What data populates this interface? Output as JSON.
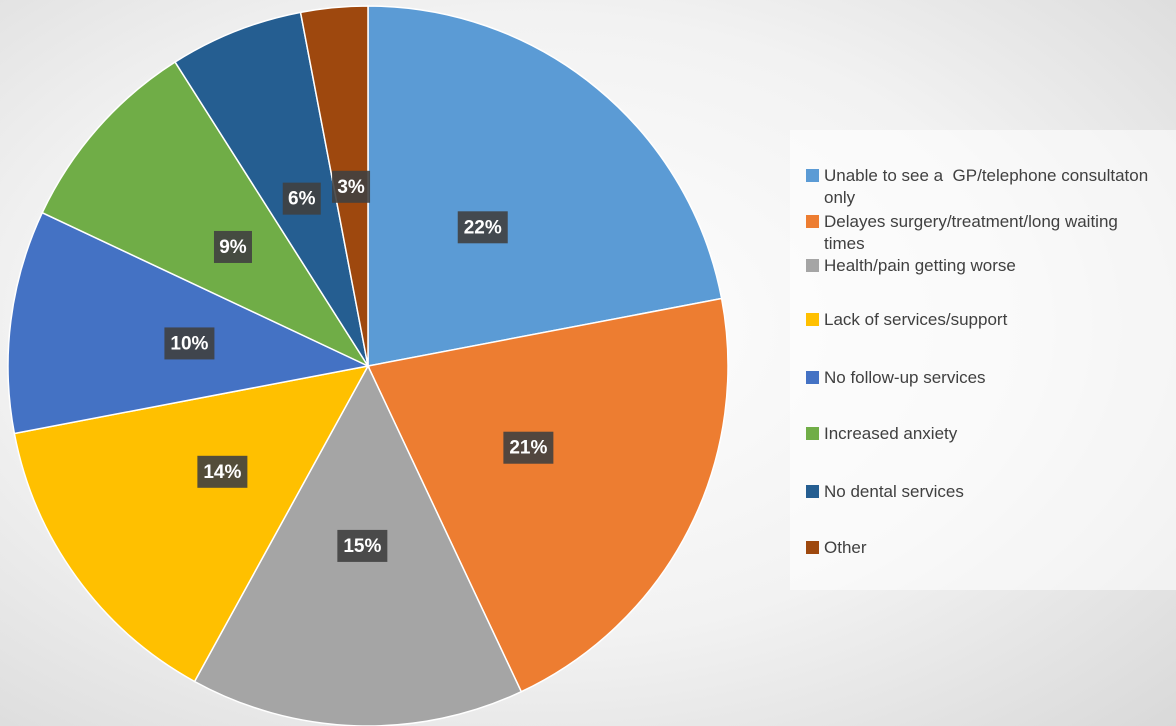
{
  "chart_data": {
    "type": "pie",
    "categories": [
      "Unable to see a  GP/telephone consultaton only",
      "Delayes surgery/treatment/long waiting times",
      "Health/pain getting worse",
      "Lack of services/support",
      "No follow-up services",
      "Increased anxiety",
      "No dental services",
      "Other"
    ],
    "values": [
      22,
      21,
      15,
      14,
      10,
      9,
      6,
      3
    ],
    "value_labels": [
      "22%",
      "21%",
      "15%",
      "14%",
      "10%",
      "9%",
      "6%",
      "3%"
    ],
    "colors": [
      "#5b9bd5",
      "#ed7d31",
      "#a5a5a5",
      "#ffc000",
      "#4472c4",
      "#70ad47",
      "#255e91",
      "#9e480e"
    ],
    "legend": "right"
  }
}
